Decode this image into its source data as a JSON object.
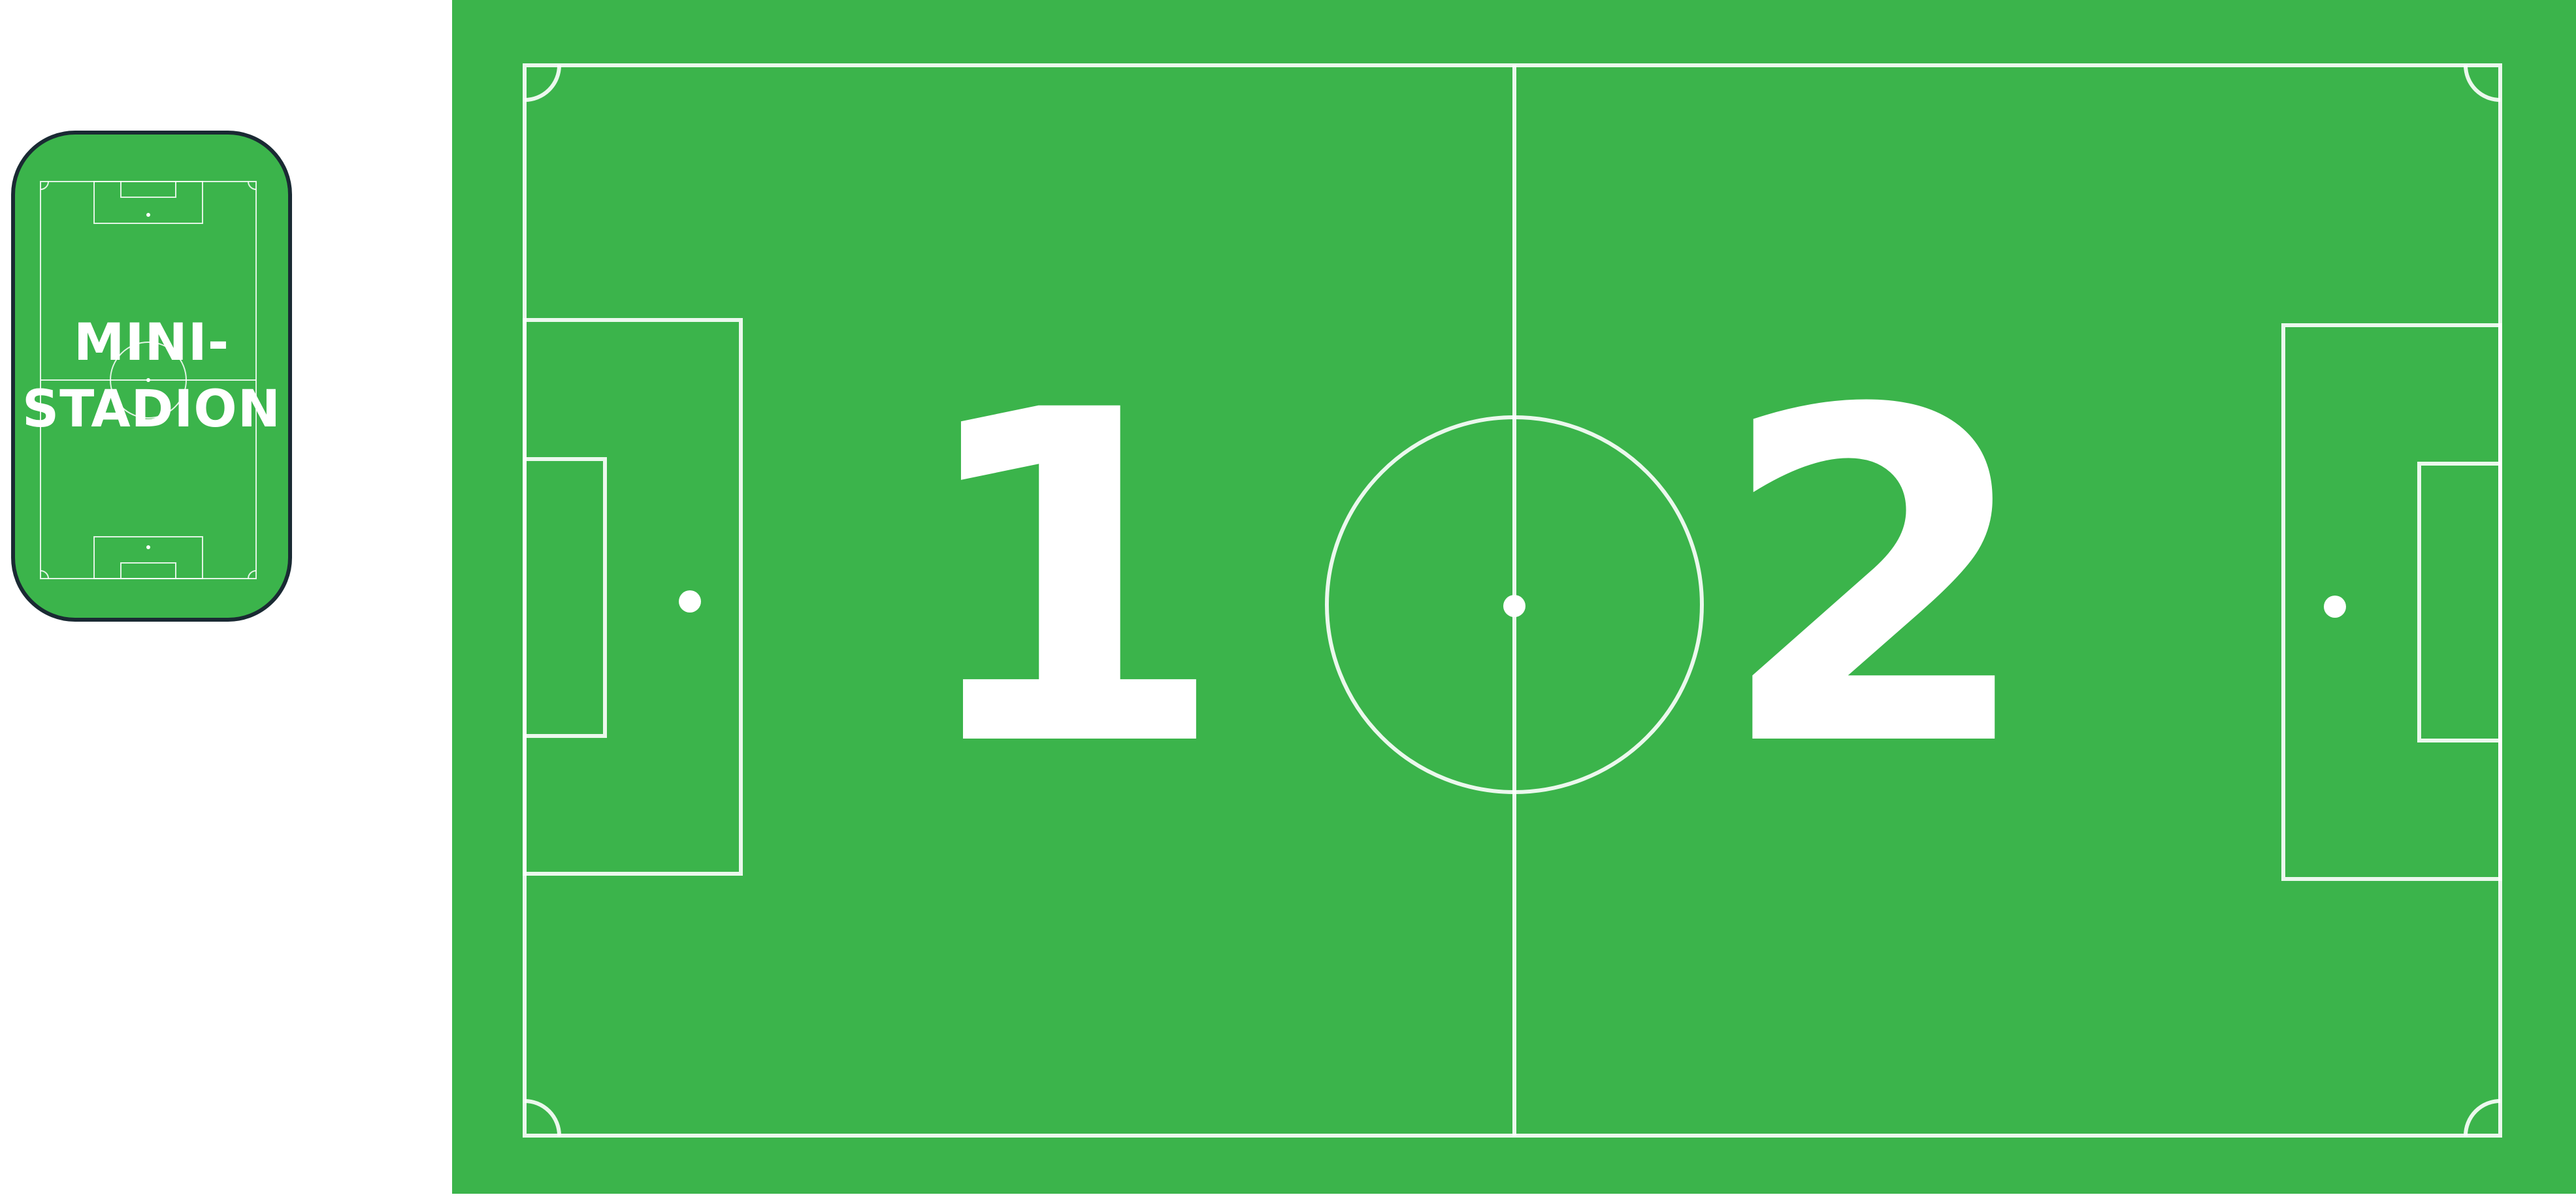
{
  "colors": {
    "pitch": "#3bb44b",
    "lines": "#ffffff",
    "card_border": "#1a2a33",
    "background": "#ffffff"
  },
  "mini_stadium": {
    "label_line1": "MINI-",
    "label_line2": "STADION"
  },
  "pitch": {
    "left_half_number": "1",
    "right_half_number": "2"
  }
}
